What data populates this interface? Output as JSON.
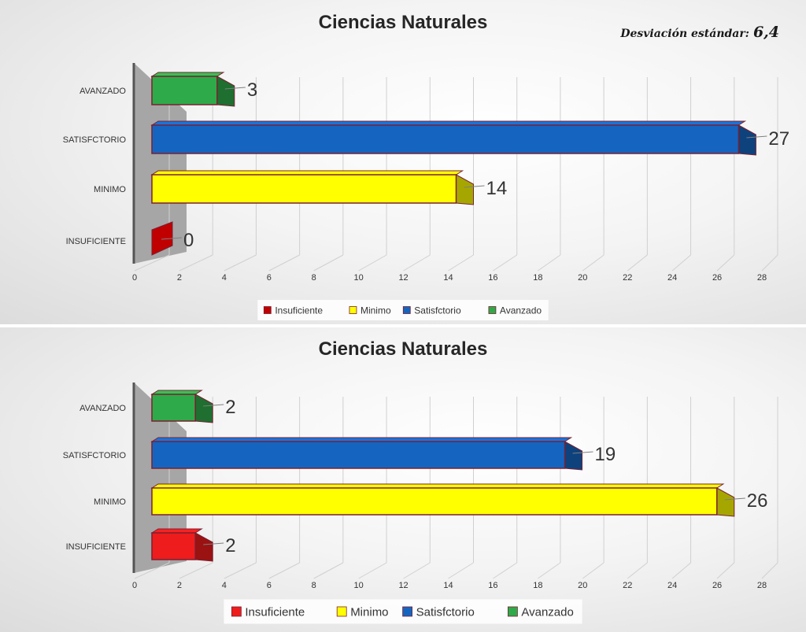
{
  "chart_data": [
    {
      "type": "bar",
      "orientation": "horizontal",
      "title": "Ciencias Naturales",
      "annotation": {
        "label": "Desviación estándar:",
        "value": "6,4"
      },
      "categories": [
        "INSUFICIENTE",
        "MINIMO",
        "SATISFCTORIO",
        "AVANZADO"
      ],
      "values": [
        0,
        14,
        27,
        3
      ],
      "series_names": [
        "Insuficiente",
        "Minimo",
        "Satisfctorio",
        "Avanzado"
      ],
      "colors": [
        "#c00000",
        "#ffff00",
        "#1565c0",
        "#2eaa4a"
      ],
      "xlim": [
        0,
        28
      ],
      "xticks": [
        "0",
        "2",
        "4",
        "6",
        "8",
        "10",
        "12",
        "14",
        "16",
        "18",
        "20",
        "22",
        "24",
        "26",
        "28"
      ],
      "grid": true,
      "legend": "bottom"
    },
    {
      "type": "bar",
      "orientation": "horizontal",
      "title": "Ciencias Naturales",
      "categories": [
        "INSUFICIENTE",
        "MINIMO",
        "SATISFCTORIO",
        "AVANZADO"
      ],
      "values": [
        2,
        26,
        19,
        2
      ],
      "series_names": [
        "Insuficiente",
        "Minimo",
        "Satisfctorio",
        "Avanzado"
      ],
      "colors": [
        "#ee1c1c",
        "#ffff00",
        "#1565c0",
        "#2eaa4a"
      ],
      "xlim": [
        0,
        28
      ],
      "xticks": [
        "0",
        "2",
        "4",
        "6",
        "8",
        "10",
        "12",
        "14",
        "16",
        "18",
        "20",
        "22",
        "24",
        "26",
        "28"
      ],
      "grid": true,
      "legend": "bottom"
    }
  ]
}
